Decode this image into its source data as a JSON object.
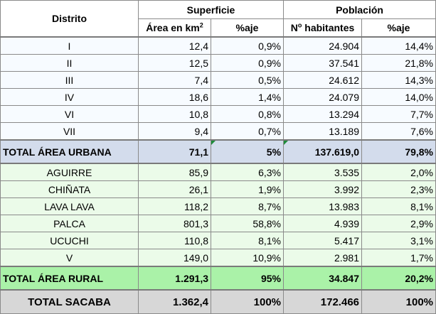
{
  "headers": {
    "distrito": "Distrito",
    "superficie": "Superficie",
    "poblacion": "Población",
    "area_label": "Área en km",
    "area_sup": "2",
    "pct_label": "%aje",
    "hab_prefix": "N",
    "hab_sup": "o",
    "hab_label": " habitantes",
    "pct2_label": "%aje"
  },
  "urban_rows": [
    {
      "name": "I",
      "area": "12,4",
      "area_pct": "0,9%",
      "hab": "24.904",
      "hab_pct": "14,4%"
    },
    {
      "name": "II",
      "area": "12,5",
      "area_pct": "0,9%",
      "hab": "37.541",
      "hab_pct": "21,8%"
    },
    {
      "name": "III",
      "area": "7,4",
      "area_pct": "0,5%",
      "hab": "24.612",
      "hab_pct": "14,3%"
    },
    {
      "name": "IV",
      "area": "18,6",
      "area_pct": "1,4%",
      "hab": "24.079",
      "hab_pct": "14,0%"
    },
    {
      "name": "VI",
      "area": "10,8",
      "area_pct": "0,8%",
      "hab": "13.294",
      "hab_pct": "7,7%"
    },
    {
      "name": "VII",
      "area": "9,4",
      "area_pct": "0,7%",
      "hab": "13.189",
      "hab_pct": "7,6%"
    }
  ],
  "total_urban": {
    "name": "TOTAL ÁREA URBANA",
    "area": "71,1",
    "area_pct": "5%",
    "hab": "137.619,0",
    "hab_pct": "79,8%"
  },
  "rural_rows": [
    {
      "name": "AGUIRRE",
      "area": "85,9",
      "area_pct": "6,3%",
      "hab": "3.535",
      "hab_pct": "2,0%"
    },
    {
      "name": "CHIÑATA",
      "area": "26,1",
      "area_pct": "1,9%",
      "hab": "3.992",
      "hab_pct": "2,3%"
    },
    {
      "name": "LAVA LAVA",
      "area": "118,2",
      "area_pct": "8,7%",
      "hab": "13.983",
      "hab_pct": "8,1%"
    },
    {
      "name": "PALCA",
      "area": "801,3",
      "area_pct": "58,8%",
      "hab": "4.939",
      "hab_pct": "2,9%"
    },
    {
      "name": "UCUCHI",
      "area": "110,8",
      "area_pct": "8,1%",
      "hab": "5.417",
      "hab_pct": "3,1%"
    },
    {
      "name": "V",
      "area": "149,0",
      "area_pct": "10,9%",
      "hab": "2.981",
      "hab_pct": "1,7%"
    }
  ],
  "total_rural": {
    "name": "TOTAL ÁREA RURAL",
    "area": "1.291,3",
    "area_pct": "95%",
    "hab": "34.847",
    "hab_pct": "20,2%"
  },
  "total_sacaba": {
    "name": "TOTAL SACABA",
    "area": "1.362,4",
    "area_pct": "100%",
    "hab": "172.466",
    "hab_pct": "100%"
  }
}
